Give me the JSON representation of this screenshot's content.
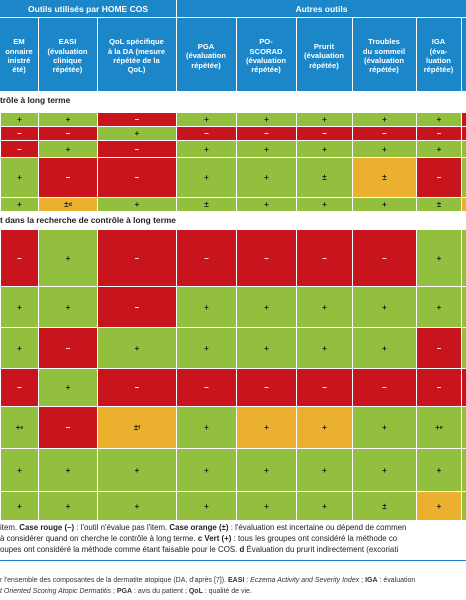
{
  "colors": {
    "green": "#93bf3f",
    "red": "#c8151d",
    "orange": "#ecb02f",
    "header": "#1b86c8"
  },
  "header": {
    "group_left": "Outils utilisés par HOME COS",
    "group_right": "Autres outils",
    "columns": [
      "EM\nonnaire\ninistré\nété)",
      "EASI\n(évaluation\nclinique\nrépétée)",
      "QoL spécifique\nà la DA (mesure\nrépétée de la\nQoL)",
      "PGA\n(évaluation\nrépétée)",
      "PO-\nSCORAD\n(évaluation\nrépétée)",
      "Prurit\n(évaluation\nrépétée)",
      "Troubles\ndu sommeil\n(évaluation\nrépétée)",
      "IGA\n(éva-\nluation\nrépétée)"
    ]
  },
  "sections": [
    {
      "label": "trôle à long terme"
    },
    {
      "label": "t dans la recherche de contrôle à long terme"
    }
  ],
  "rows_a": [
    [
      {
        "c": "g",
        "t": "+"
      },
      {
        "c": "g",
        "t": "+"
      },
      {
        "c": "r",
        "t": "–"
      },
      {
        "c": "g",
        "t": "+"
      },
      {
        "c": "g",
        "t": "+"
      },
      {
        "c": "g",
        "t": "+"
      },
      {
        "c": "g",
        "t": "+"
      },
      {
        "c": "g",
        "t": "+"
      },
      {
        "c": "r",
        "t": ""
      }
    ],
    [
      {
        "c": "r",
        "t": "–"
      },
      {
        "c": "r",
        "t": "–"
      },
      {
        "c": "g",
        "t": "+"
      },
      {
        "c": "r",
        "t": "–"
      },
      {
        "c": "r",
        "t": "–"
      },
      {
        "c": "r",
        "t": "–"
      },
      {
        "c": "r",
        "t": "–"
      },
      {
        "c": "r",
        "t": "–"
      },
      {
        "c": "r",
        "t": ""
      }
    ],
    [
      {
        "c": "r",
        "t": "–"
      },
      {
        "c": "g",
        "t": "+"
      },
      {
        "c": "r",
        "t": "–"
      },
      {
        "c": "g",
        "t": "+"
      },
      {
        "c": "g",
        "t": "+"
      },
      {
        "c": "g",
        "t": "+"
      },
      {
        "c": "g",
        "t": "+"
      },
      {
        "c": "g",
        "t": "+"
      },
      {
        "c": "g",
        "t": ""
      }
    ],
    [
      {
        "c": "g",
        "t": "+"
      },
      {
        "c": "r",
        "t": "–"
      },
      {
        "c": "r",
        "t": "–"
      },
      {
        "c": "g",
        "t": "+"
      },
      {
        "c": "g",
        "t": "+"
      },
      {
        "c": "g",
        "t": "±"
      },
      {
        "c": "o",
        "t": "±"
      },
      {
        "c": "r",
        "t": "–"
      },
      {
        "c": "g",
        "t": ""
      }
    ],
    [
      {
        "c": "g",
        "t": "+"
      },
      {
        "c": "o",
        "t": "±",
        "s": "d"
      },
      {
        "c": "g",
        "t": "+"
      },
      {
        "c": "g",
        "t": "±"
      },
      {
        "c": "g",
        "t": "+"
      },
      {
        "c": "g",
        "t": "+"
      },
      {
        "c": "g",
        "t": "+"
      },
      {
        "c": "g",
        "t": "±"
      },
      {
        "c": "o",
        "t": ""
      }
    ]
  ],
  "rows_b": [
    [
      {
        "c": "r",
        "t": "–"
      },
      {
        "c": "g",
        "t": "+"
      },
      {
        "c": "r",
        "t": "–"
      },
      {
        "c": "r",
        "t": "–"
      },
      {
        "c": "r",
        "t": "–"
      },
      {
        "c": "r",
        "t": "–"
      },
      {
        "c": "r",
        "t": "–"
      },
      {
        "c": "g",
        "t": "+"
      },
      {
        "c": "g",
        "t": ""
      }
    ],
    [
      {
        "c": "g",
        "t": "+"
      },
      {
        "c": "g",
        "t": "+"
      },
      {
        "c": "r",
        "t": "–"
      },
      {
        "c": "g",
        "t": "+"
      },
      {
        "c": "g",
        "t": "+"
      },
      {
        "c": "g",
        "t": "+"
      },
      {
        "c": "g",
        "t": "+"
      },
      {
        "c": "g",
        "t": "+"
      },
      {
        "c": "g",
        "t": ""
      }
    ],
    [
      {
        "c": "g",
        "t": "+"
      },
      {
        "c": "r",
        "t": "–"
      },
      {
        "c": "g",
        "t": "+"
      },
      {
        "c": "g",
        "t": "+"
      },
      {
        "c": "g",
        "t": "+"
      },
      {
        "c": "g",
        "t": "+"
      },
      {
        "c": "g",
        "t": "+"
      },
      {
        "c": "r",
        "t": "–"
      },
      {
        "c": "g",
        "t": ""
      }
    ],
    [
      {
        "c": "r",
        "t": "–"
      },
      {
        "c": "g",
        "t": "+"
      },
      {
        "c": "r",
        "t": "–"
      },
      {
        "c": "r",
        "t": "–"
      },
      {
        "c": "r",
        "t": "–"
      },
      {
        "c": "r",
        "t": "–"
      },
      {
        "c": "r",
        "t": "–"
      },
      {
        "c": "r",
        "t": "–"
      },
      {
        "c": "r",
        "t": ""
      }
    ],
    [
      {
        "c": "g",
        "t": "+",
        "s": "e"
      },
      {
        "c": "r",
        "t": "–"
      },
      {
        "c": "o",
        "t": "±",
        "s": "f"
      },
      {
        "c": "g",
        "t": "+"
      },
      {
        "c": "o",
        "t": "+"
      },
      {
        "c": "o",
        "t": "+"
      },
      {
        "c": "g",
        "t": "+"
      },
      {
        "c": "g",
        "t": "+",
        "s": "e"
      },
      {
        "c": "g",
        "t": ""
      }
    ],
    [
      {
        "c": "g",
        "t": "+"
      },
      {
        "c": "g",
        "t": "+"
      },
      {
        "c": "g",
        "t": "+"
      },
      {
        "c": "g",
        "t": "+"
      },
      {
        "c": "g",
        "t": "+"
      },
      {
        "c": "g",
        "t": "+"
      },
      {
        "c": "g",
        "t": "+"
      },
      {
        "c": "g",
        "t": "+"
      },
      {
        "c": "g",
        "t": ""
      }
    ],
    [
      {
        "c": "g",
        "t": "+"
      },
      {
        "c": "g",
        "t": "+"
      },
      {
        "c": "g",
        "t": "+"
      },
      {
        "c": "g",
        "t": "+"
      },
      {
        "c": "g",
        "t": "+"
      },
      {
        "c": "g",
        "t": "+"
      },
      {
        "c": "g",
        "t": "±"
      },
      {
        "c": "o",
        "t": "+"
      },
      {
        "c": "g",
        "t": ""
      }
    ]
  ],
  "footnote": {
    "l1_a": "item. ",
    "l1_b": "Case rouge (–)",
    "l1_c": " : l'outil n'évalue pas l'item. ",
    "l1_d": "Case orange (±)",
    "l1_e": " : l'évaluation est incertaine ou dépend de commen",
    "l2_a": "à considérer quand on cherche le contrôle à long terme. ",
    "l2_b": "c Vert (+)",
    "l2_c": " : tous les groupes ont considéré la méthode co",
    "l3_a": "oupes ont considéré la méthode comme étant faisable pour le COS. ",
    "l3_b": "d",
    "l3_c": " Évaluation du prurit indirectement (excoriati"
  },
  "tail": {
    "l1_a": "r l'ensemble des composantes de la dermatite atopique (DA, d'après [7]). ",
    "l1_b": "EASI",
    "l1_c": " : ",
    "l1_d": "Eczema Activity and Severity Index",
    "l1_e": " ; ",
    "l1_f": "IGA",
    "l1_g": " : évaluation",
    "l2_a": "t Oriented Scoring Atopic Dermatitis",
    "l2_b": " ; ",
    "l2_c": "PGA",
    "l2_d": " : avis du patient ; ",
    "l2_e": "QoL",
    "l2_f": " : qualité de vie."
  }
}
